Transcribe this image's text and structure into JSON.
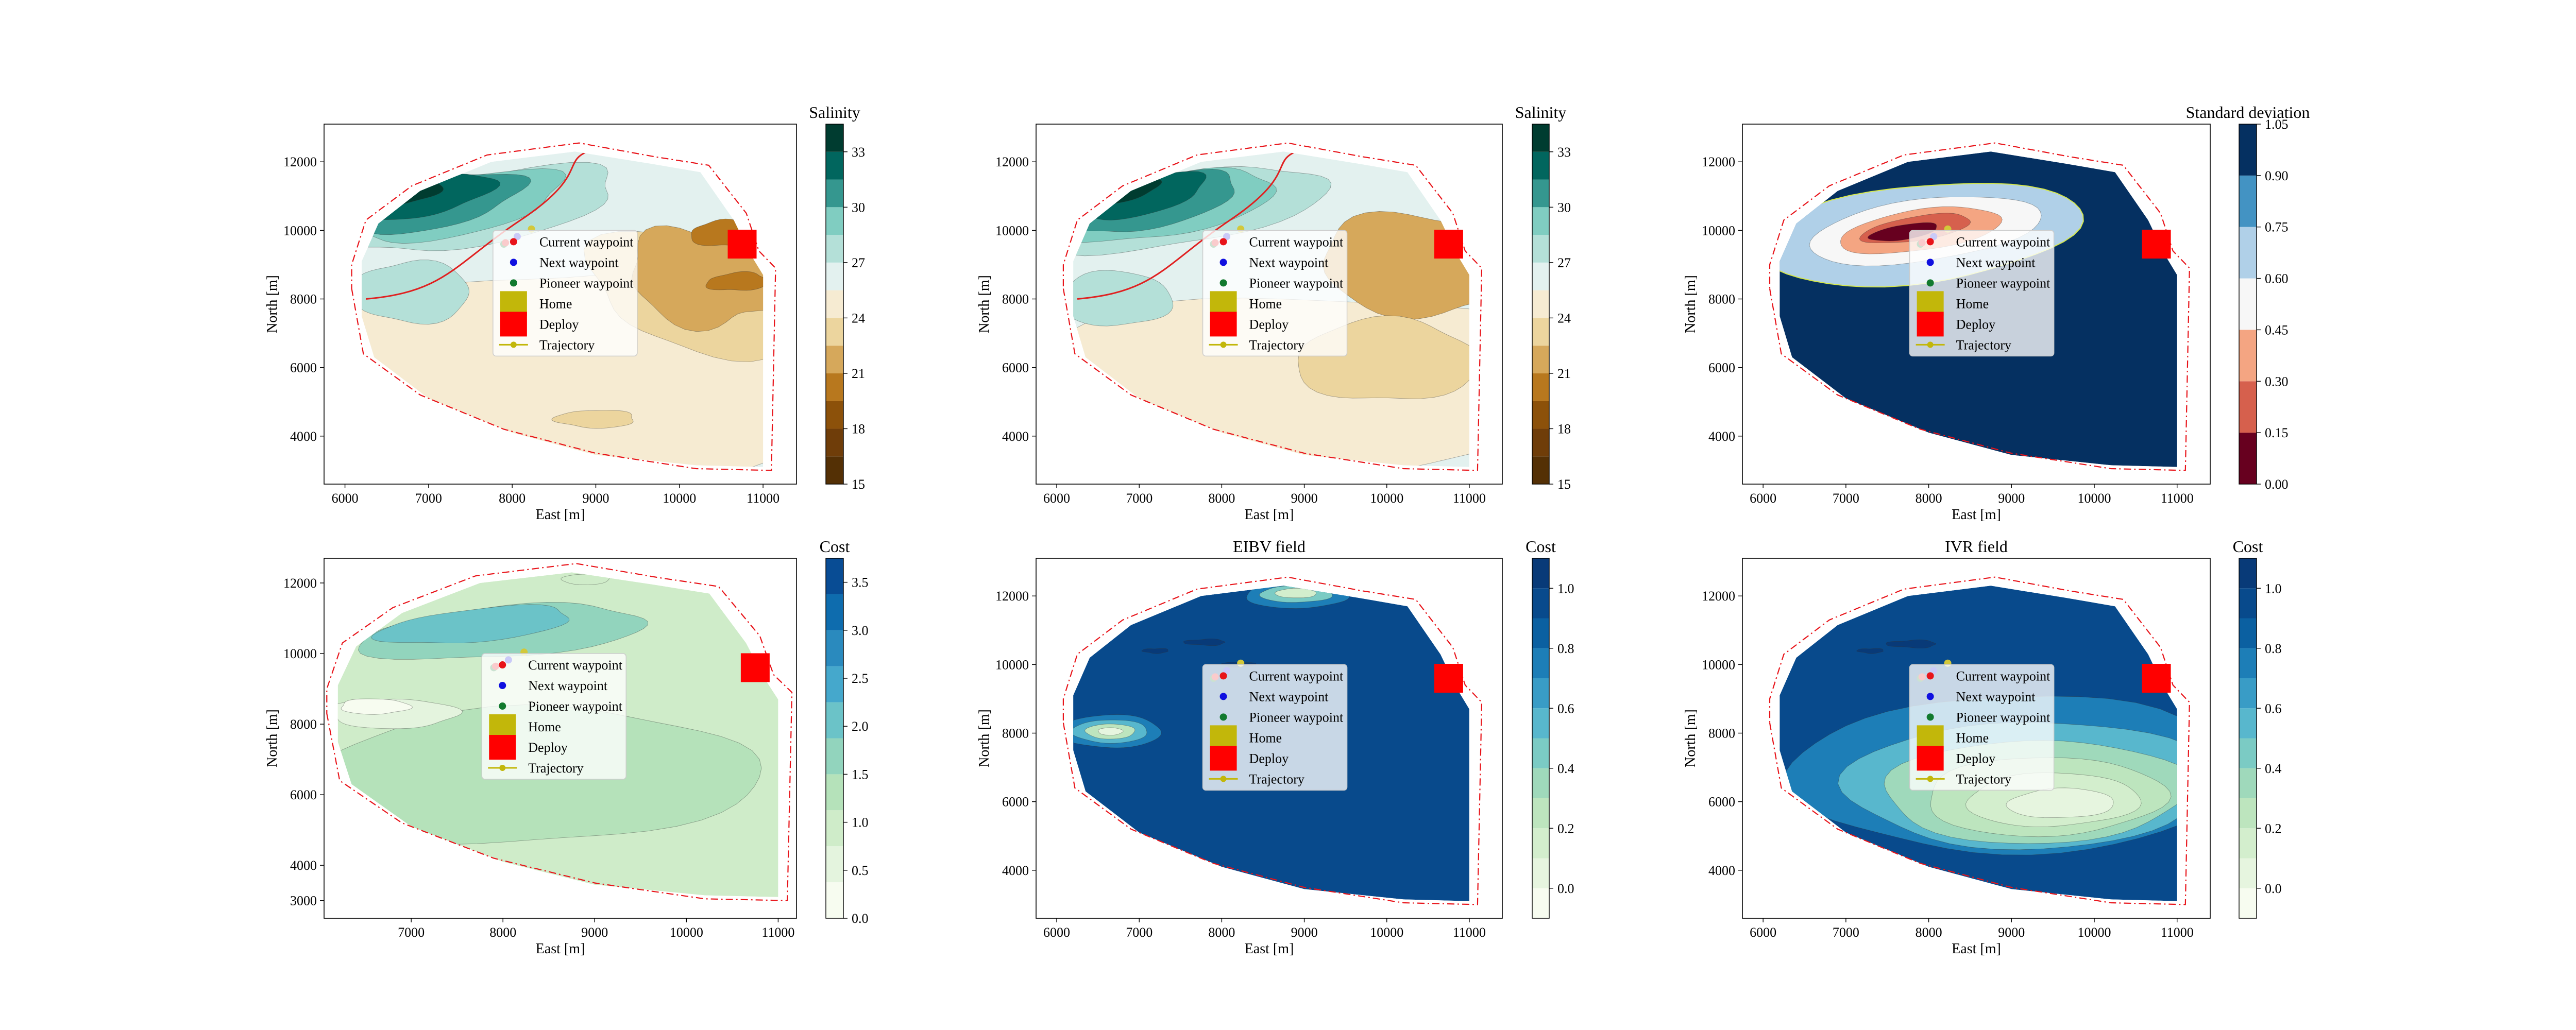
{
  "figure": {
    "legend": {
      "entries": [
        {
          "label": "Current waypoint",
          "color": "#e8141a",
          "icon": "dot-icon"
        },
        {
          "label": "Next waypoint",
          "color": "#1010e0",
          "icon": "dot-icon"
        },
        {
          "label": "Pioneer waypoint",
          "color": "#127a2e",
          "icon": "dot-icon"
        },
        {
          "label": "Home",
          "color": "#c2b70a",
          "icon": "square-icon"
        },
        {
          "label": "Deploy",
          "color": "#ff0000",
          "icon": "square-icon"
        },
        {
          "label": "Trajectory",
          "color": "#c2b70a",
          "icon": "line-dot-icon"
        }
      ]
    },
    "markers": {
      "current_waypoint": {
        "x": 7920,
        "y": 9640
      },
      "next_waypoint": {
        "x": 8060,
        "y": 9820
      },
      "pioneer_waypoint": {
        "x": 7900,
        "y": 9600
      },
      "home": {
        "x": 8230,
        "y": 10040
      },
      "deploy": {
        "x": 10750,
        "y": 9600
      }
    }
  },
  "chart_data": [
    {
      "type": "contour",
      "title": "",
      "xlabel": "East [m]",
      "ylabel": "North [m]",
      "xlim": [
        5750,
        11400
      ],
      "ylim": [
        2600,
        13100
      ],
      "xticks": [
        "6000",
        "7000",
        "8000",
        "9000",
        "10000",
        "11000"
      ],
      "yticks": [
        "4000",
        "6000",
        "8000",
        "10000",
        "12000"
      ],
      "colorbar": {
        "title": "Salinity",
        "min": 15,
        "max": 34.5,
        "ticks": [
          "15",
          "18",
          "21",
          "24",
          "27",
          "30",
          "33"
        ],
        "tick_values": [
          15,
          18,
          21,
          24,
          27,
          30,
          33
        ],
        "colormap": "BrBG",
        "levels": [
          {
            "from": 15,
            "to": 16.5,
            "color": "#543005"
          },
          {
            "from": 16.5,
            "to": 18,
            "color": "#6f3d09"
          },
          {
            "from": 18,
            "to": 19.5,
            "color": "#8c510a"
          },
          {
            "from": 19.5,
            "to": 21,
            "color": "#b8781e"
          },
          {
            "from": 21,
            "to": 22.5,
            "color": "#d6a85b"
          },
          {
            "from": 22.5,
            "to": 24,
            "color": "#ecd59e"
          },
          {
            "from": 24,
            "to": 25.5,
            "color": "#f6ebd2"
          },
          {
            "from": 25.5,
            "to": 27,
            "color": "#e3f1ef"
          },
          {
            "from": 27,
            "to": 28.5,
            "color": "#b4e0d8"
          },
          {
            "from": 28.5,
            "to": 30,
            "color": "#80cdc1"
          },
          {
            "from": 30,
            "to": 31.5,
            "color": "#35978f"
          },
          {
            "from": 31.5,
            "to": 33,
            "color": "#01665e"
          },
          {
            "from": 33,
            "to": 34.5,
            "color": "#003c30"
          }
        ]
      }
    },
    {
      "type": "contour",
      "title": "",
      "xlabel": "East [m]",
      "ylabel": "North [m]",
      "xlim": [
        5750,
        11400
      ],
      "ylim": [
        2600,
        13100
      ],
      "xticks": [
        "6000",
        "7000",
        "8000",
        "9000",
        "10000",
        "11000"
      ],
      "yticks": [
        "4000",
        "6000",
        "8000",
        "10000",
        "12000"
      ],
      "colorbar": {
        "title": "Salinity",
        "min": 15,
        "max": 34.5,
        "ticks": [
          "15",
          "18",
          "21",
          "24",
          "27",
          "30",
          "33"
        ],
        "tick_values": [
          15,
          18,
          21,
          24,
          27,
          30,
          33
        ],
        "colormap": "BrBG",
        "levels": [
          {
            "from": 15,
            "to": 16.5,
            "color": "#543005"
          },
          {
            "from": 16.5,
            "to": 18,
            "color": "#6f3d09"
          },
          {
            "from": 18,
            "to": 19.5,
            "color": "#8c510a"
          },
          {
            "from": 19.5,
            "to": 21,
            "color": "#b8781e"
          },
          {
            "from": 21,
            "to": 22.5,
            "color": "#d6a85b"
          },
          {
            "from": 22.5,
            "to": 24,
            "color": "#ecd59e"
          },
          {
            "from": 24,
            "to": 25.5,
            "color": "#f6ebd2"
          },
          {
            "from": 25.5,
            "to": 27,
            "color": "#e3f1ef"
          },
          {
            "from": 27,
            "to": 28.5,
            "color": "#b4e0d8"
          },
          {
            "from": 28.5,
            "to": 30,
            "color": "#80cdc1"
          },
          {
            "from": 30,
            "to": 31.5,
            "color": "#35978f"
          },
          {
            "from": 31.5,
            "to": 33,
            "color": "#01665e"
          },
          {
            "from": 33,
            "to": 34.5,
            "color": "#003c30"
          }
        ]
      }
    },
    {
      "type": "contour",
      "title": "",
      "xlabel": "East [m]",
      "ylabel": "North [m]",
      "xlim": [
        5750,
        11400
      ],
      "ylim": [
        2600,
        13100
      ],
      "xticks": [
        "6000",
        "7000",
        "8000",
        "9000",
        "10000",
        "11000"
      ],
      "yticks": [
        "4000",
        "6000",
        "8000",
        "10000",
        "12000"
      ],
      "colorbar": {
        "title": "Standard deviation",
        "min": 0,
        "max": 1.05,
        "ticks": [
          "0.00",
          "0.15",
          "0.30",
          "0.45",
          "0.60",
          "0.75",
          "0.90",
          "1.05"
        ],
        "tick_values": [
          0,
          0.15,
          0.3,
          0.45,
          0.6,
          0.75,
          0.9,
          1.05
        ],
        "colormap": "RdBu",
        "levels": [
          {
            "from": 0,
            "to": 0.15,
            "color": "#67001f"
          },
          {
            "from": 0.15,
            "to": 0.3,
            "color": "#d6604d"
          },
          {
            "from": 0.3,
            "to": 0.45,
            "color": "#f4a582"
          },
          {
            "from": 0.45,
            "to": 0.6,
            "color": "#f7f7f7"
          },
          {
            "from": 0.6,
            "to": 0.75,
            "color": "#b0d0e8"
          },
          {
            "from": 0.75,
            "to": 0.9,
            "color": "#4393c3"
          },
          {
            "from": 0.9,
            "to": 1.05,
            "color": "#053061"
          }
        ]
      }
    },
    {
      "type": "contour",
      "title": "",
      "xlabel": "East [m]",
      "ylabel": "North [m]",
      "xlim": [
        6050,
        11200
      ],
      "ylim": [
        2500,
        12700
      ],
      "xticks": [
        "7000",
        "8000",
        "9000",
        "10000",
        "11000"
      ],
      "yticks": [
        "3000",
        "4000",
        "6000",
        "8000",
        "10000",
        "12000"
      ],
      "colorbar": {
        "title": "Cost",
        "min": 0,
        "max": 3.75,
        "ticks": [
          "0.0",
          "0.5",
          "1.0",
          "1.5",
          "2.0",
          "2.5",
          "3.0",
          "3.5"
        ],
        "tick_values": [
          0,
          0.5,
          1,
          1.5,
          2,
          2.5,
          3,
          3.5
        ],
        "colormap": "GnBu",
        "levels": [
          {
            "from": 0,
            "to": 0.375,
            "color": "#f7fcf0"
          },
          {
            "from": 0.375,
            "to": 0.75,
            "color": "#e4f4de"
          },
          {
            "from": 0.75,
            "to": 1.125,
            "color": "#cfecc9"
          },
          {
            "from": 1.125,
            "to": 1.5,
            "color": "#b5e2ba"
          },
          {
            "from": 1.5,
            "to": 1.875,
            "color": "#92d4bd"
          },
          {
            "from": 1.875,
            "to": 2.25,
            "color": "#6bc3c8"
          },
          {
            "from": 2.25,
            "to": 2.625,
            "color": "#45a8cc"
          },
          {
            "from": 2.625,
            "to": 3,
            "color": "#2a8abe"
          },
          {
            "from": 3,
            "to": 3.375,
            "color": "#0e6cae"
          },
          {
            "from": 3.375,
            "to": 3.75,
            "color": "#084c94"
          }
        ]
      }
    },
    {
      "type": "contour",
      "title": "EIBV field",
      "xlabel": "East [m]",
      "ylabel": "North [m]",
      "xlim": [
        5750,
        11400
      ],
      "ylim": [
        2600,
        13100
      ],
      "xticks": [
        "6000",
        "7000",
        "8000",
        "9000",
        "10000",
        "11000"
      ],
      "yticks": [
        "4000",
        "6000",
        "8000",
        "10000",
        "12000"
      ],
      "colorbar": {
        "title": "Cost",
        "min": -0.1,
        "max": 1.1,
        "ticks": [
          "0.0",
          "0.2",
          "0.4",
          "0.6",
          "0.8",
          "1.0"
        ],
        "tick_values": [
          0,
          0.2,
          0.4,
          0.6,
          0.8,
          1.0
        ],
        "colormap": "GnBu",
        "levels": [
          {
            "from": -0.1,
            "to": 0,
            "color": "#f7fcf0"
          },
          {
            "from": 0,
            "to": 0.1,
            "color": "#e6f5df"
          },
          {
            "from": 0.1,
            "to": 0.2,
            "color": "#d3eecd"
          },
          {
            "from": 0.2,
            "to": 0.3,
            "color": "#bde5be"
          },
          {
            "from": 0.3,
            "to": 0.4,
            "color": "#9fd9bb"
          },
          {
            "from": 0.4,
            "to": 0.5,
            "color": "#7bcbc4"
          },
          {
            "from": 0.5,
            "to": 0.6,
            "color": "#58b7cd"
          },
          {
            "from": 0.6,
            "to": 0.7,
            "color": "#399cc6"
          },
          {
            "from": 0.7,
            "to": 0.8,
            "color": "#1d7eb7"
          },
          {
            "from": 0.8,
            "to": 0.9,
            "color": "#0b60a1"
          },
          {
            "from": 0.9,
            "to": 1.0,
            "color": "#084a8c"
          },
          {
            "from": 1.0,
            "to": 1.1,
            "color": "#083a78"
          }
        ]
      }
    },
    {
      "type": "contour",
      "title": "IVR field",
      "xlabel": "East [m]",
      "ylabel": "North [m]",
      "xlim": [
        5750,
        11400
      ],
      "ylim": [
        2600,
        13100
      ],
      "xticks": [
        "6000",
        "7000",
        "8000",
        "9000",
        "10000",
        "11000"
      ],
      "yticks": [
        "4000",
        "6000",
        "8000",
        "10000",
        "12000"
      ],
      "colorbar": {
        "title": "Cost",
        "min": -0.1,
        "max": 1.1,
        "ticks": [
          "0.0",
          "0.2",
          "0.4",
          "0.6",
          "0.8",
          "1.0"
        ],
        "tick_values": [
          0,
          0.2,
          0.4,
          0.6,
          0.8,
          1.0
        ],
        "colormap": "GnBu",
        "levels": [
          {
            "from": -0.1,
            "to": 0,
            "color": "#f7fcf0"
          },
          {
            "from": 0,
            "to": 0.1,
            "color": "#e6f5df"
          },
          {
            "from": 0.1,
            "to": 0.2,
            "color": "#d3eecd"
          },
          {
            "from": 0.2,
            "to": 0.3,
            "color": "#bde5be"
          },
          {
            "from": 0.3,
            "to": 0.4,
            "color": "#9fd9bb"
          },
          {
            "from": 0.4,
            "to": 0.5,
            "color": "#7bcbc4"
          },
          {
            "from": 0.5,
            "to": 0.6,
            "color": "#58b7cd"
          },
          {
            "from": 0.6,
            "to": 0.7,
            "color": "#399cc6"
          },
          {
            "from": 0.7,
            "to": 0.8,
            "color": "#1d7eb7"
          },
          {
            "from": 0.8,
            "to": 0.9,
            "color": "#0b60a1"
          },
          {
            "from": 0.9,
            "to": 1.0,
            "color": "#084a8c"
          },
          {
            "from": 1.0,
            "to": 1.1,
            "color": "#083a78"
          }
        ]
      }
    }
  ]
}
